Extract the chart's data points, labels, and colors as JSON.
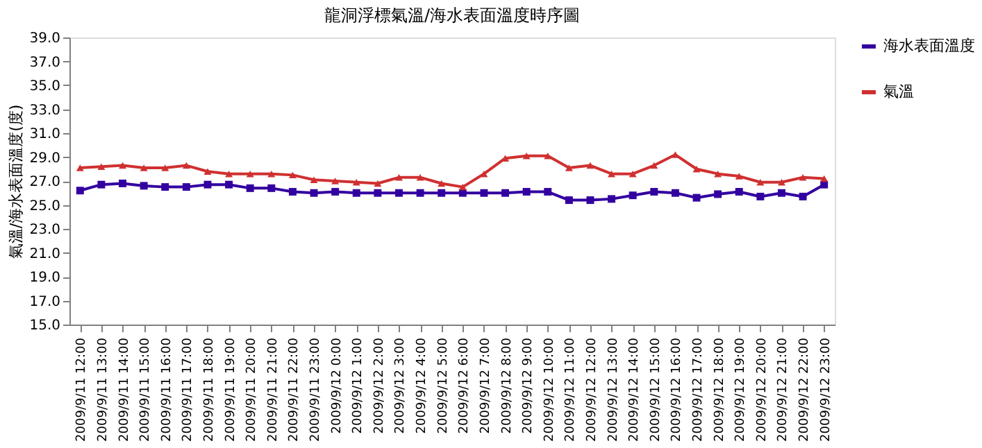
{
  "chart_data": {
    "type": "line",
    "title": "龍洞浮標氣溫/海水表面溫度時序圖",
    "ylabel": "氣溫/海水表面溫度(度)",
    "categories": [
      "2009/9/11 12:00",
      "2009/9/11 13:00",
      "2009/9/11 14:00",
      "2009/9/11 15:00",
      "2009/9/11 16:00",
      "2009/9/11 17:00",
      "2009/9/11 18:00",
      "2009/9/11 19:00",
      "2009/9/11 20:00",
      "2009/9/11 21:00",
      "2009/9/11 22:00",
      "2009/9/11 23:00",
      "2009/9/12 0:00",
      "2009/9/12 1:00",
      "2009/9/12 2:00",
      "2009/9/12 3:00",
      "2009/9/12 4:00",
      "2009/9/12 5:00",
      "2009/9/12 6:00",
      "2009/9/12 7:00",
      "2009/9/12 8:00",
      "2009/9/12 9:00",
      "2009/9/12 10:00",
      "2009/9/12 11:00",
      "2009/9/12 12:00",
      "2009/9/12 13:00",
      "2009/9/12 14:00",
      "2009/9/12 15:00",
      "2009/9/12 16:00",
      "2009/9/12 17:00",
      "2009/9/12 18:00",
      "2009/9/12 19:00",
      "2009/9/12 20:00",
      "2009/9/12 21:00",
      "2009/9/12 22:00",
      "2009/9/12 23:00"
    ],
    "series": [
      {
        "name": "海水表面溫度",
        "color": "#3300a0",
        "marker": "square",
        "values": [
          26.2,
          26.7,
          26.8,
          26.6,
          26.5,
          26.5,
          26.7,
          26.7,
          26.4,
          26.4,
          26.1,
          26.0,
          26.1,
          26.0,
          26.0,
          26.0,
          26.0,
          26.0,
          26.0,
          26.0,
          26.0,
          26.1,
          26.1,
          25.4,
          25.4,
          25.5,
          25.8,
          26.1,
          26.0,
          25.6,
          25.9,
          26.1,
          25.7,
          26.0,
          25.7,
          26.7
        ]
      },
      {
        "name": "氣溫",
        "color": "#d03030",
        "marker": "triangle",
        "values": [
          28.1,
          28.2,
          28.3,
          28.1,
          28.1,
          28.3,
          27.8,
          27.6,
          27.6,
          27.6,
          27.5,
          27.1,
          27.0,
          26.9,
          26.8,
          27.3,
          27.3,
          26.8,
          26.5,
          27.6,
          28.9,
          29.1,
          29.1,
          28.1,
          28.3,
          27.6,
          27.6,
          28.3,
          29.2,
          28.0,
          27.6,
          27.4,
          26.9,
          26.9,
          27.3,
          27.2
        ]
      }
    ],
    "ylim": [
      15,
      39
    ],
    "yticks": [
      {
        "value": 15,
        "label": "15.0"
      },
      {
        "value": 17,
        "label": "17.0"
      },
      {
        "value": 19,
        "label": "19.0"
      },
      {
        "value": 21,
        "label": "21.0"
      },
      {
        "value": 23,
        "label": "23.0"
      },
      {
        "value": 25,
        "label": "25.0"
      },
      {
        "value": 27,
        "label": "27.0"
      },
      {
        "value": 29,
        "label": "29.0"
      },
      {
        "value": 31,
        "label": "31.0"
      },
      {
        "value": 33,
        "label": "33.0"
      },
      {
        "value": 35,
        "label": "35.0"
      },
      {
        "value": 37,
        "label": "37.0"
      },
      {
        "value": 39,
        "label": "39.0"
      }
    ],
    "grid": false,
    "legend": "right",
    "line_style": "solid"
  }
}
